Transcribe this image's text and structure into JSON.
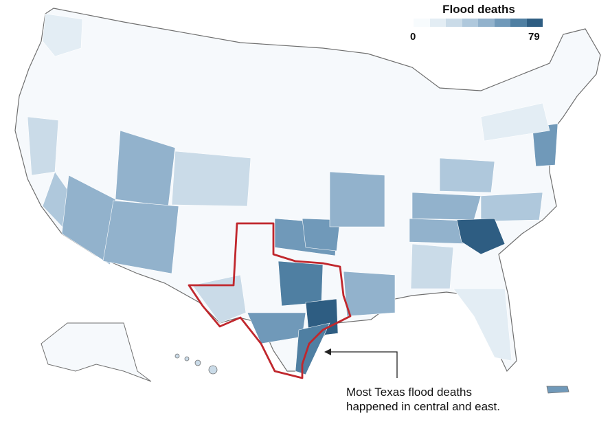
{
  "legend": {
    "title": "Flood deaths",
    "min_label": "0",
    "max_label": "79",
    "scale": [
      "#f7fbfd",
      "#e3edf4",
      "#cadbe8",
      "#afc8dc",
      "#92b2cc",
      "#7099b9",
      "#4f7fa2",
      "#2e5d82"
    ]
  },
  "annotation": {
    "text": "Most Texas flood deaths happened in central and east."
  },
  "colors": {
    "highlight_outline": "#c0272d",
    "land_base": "#f6f9fc",
    "state_border": "#6f6f6f"
  }
}
